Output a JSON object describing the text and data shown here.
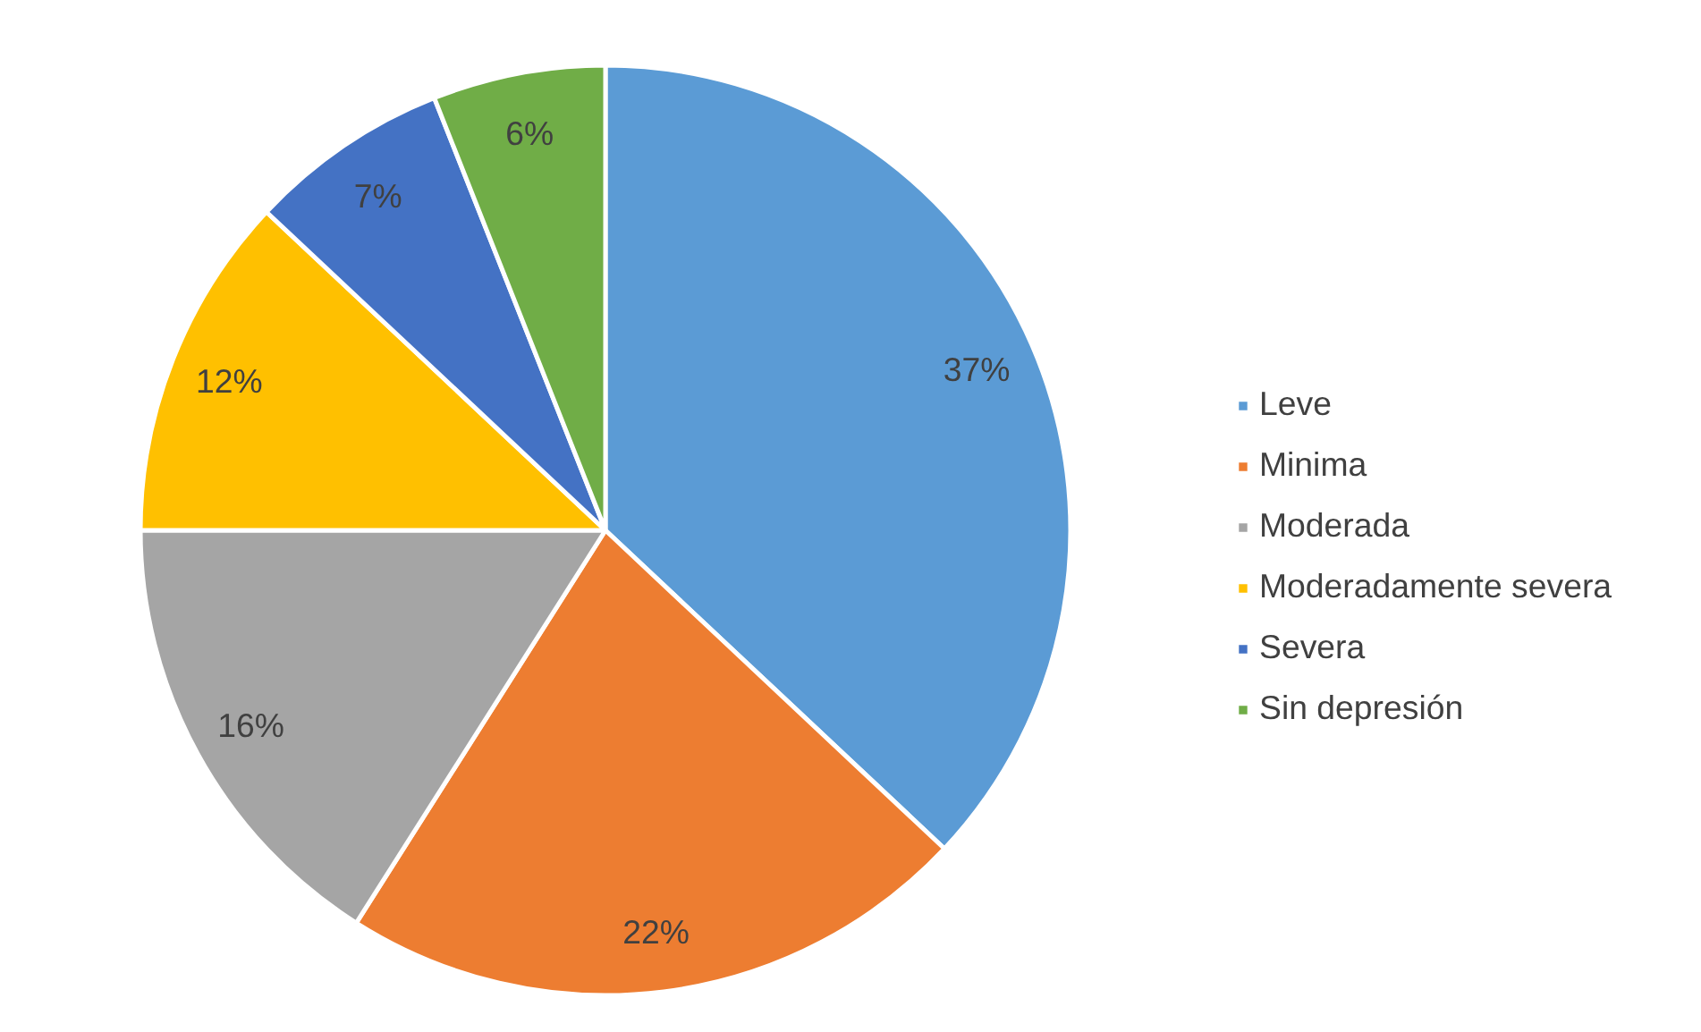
{
  "chart_data": {
    "type": "pie",
    "categories": [
      "Leve",
      "Minima",
      "Moderada",
      "Moderadamente severa",
      "Severa",
      "Sin depresión"
    ],
    "values": [
      37,
      22,
      16,
      12,
      7,
      6
    ],
    "colors": [
      "#5b9bd5",
      "#ed7d31",
      "#a5a5a5",
      "#ffc000",
      "#4472c4",
      "#70ad47"
    ],
    "value_labels": [
      "37%",
      "22%",
      "16%",
      "12%",
      "7%",
      "6%"
    ],
    "legend": "right"
  }
}
